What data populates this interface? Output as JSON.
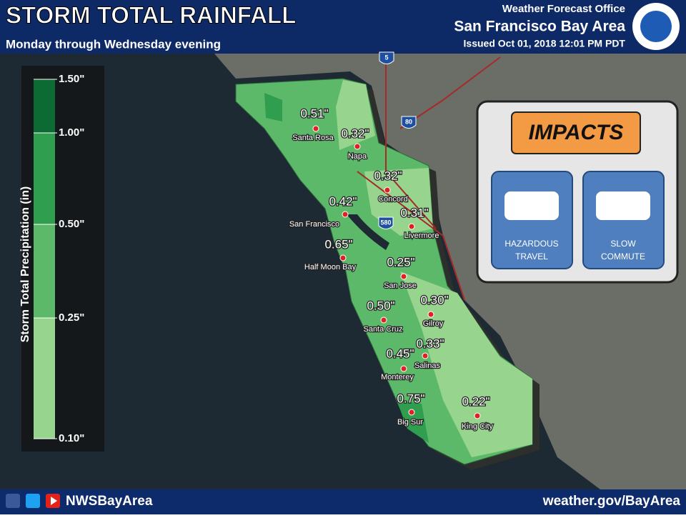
{
  "header": {
    "title": "STORM TOTAL RAINFALL",
    "subtitle": "Monday through Wednesday evening",
    "office": "Weather Forecast Office",
    "area": "San Francisco Bay Area",
    "issued": "Issued Oct 01, 2018 12:01 PM PDT"
  },
  "legend": {
    "title": "Storm Total Precipitation (in)",
    "ticks": [
      "1.50\"",
      "1.00\"",
      "0.50\"",
      "0.25\"",
      "0.10\""
    ],
    "colors": [
      "#0c6b33",
      "#2f9e4e",
      "#5db96a",
      "#97d48d"
    ]
  },
  "map": {
    "shields": [
      "5",
      "80",
      "580"
    ]
  },
  "cities": [
    {
      "name": "Santa Rosa",
      "amount": "0.51\""
    },
    {
      "name": "Napa",
      "amount": "0.32\""
    },
    {
      "name": "Concord",
      "amount": "0.32\""
    },
    {
      "name": "San Francisco",
      "amount": "0.42\""
    },
    {
      "name": "Livermore",
      "amount": "0.31\""
    },
    {
      "name": "Half Moon Bay",
      "amount": "0.65\""
    },
    {
      "name": "San Jose",
      "amount": "0.25\""
    },
    {
      "name": "Gilroy",
      "amount": "0.30\""
    },
    {
      "name": "Santa Cruz",
      "amount": "0.50\""
    },
    {
      "name": "Salinas",
      "amount": "0.33\""
    },
    {
      "name": "Monterey",
      "amount": "0.45\""
    },
    {
      "name": "Big Sur",
      "amount": "0.75\""
    },
    {
      "name": "King City",
      "amount": "0.22\""
    }
  ],
  "impacts": {
    "title": "IMPACTS",
    "items": [
      {
        "lines": [
          "HAZARDOUS",
          "TRAVEL"
        ]
      },
      {
        "lines": [
          "SLOW",
          "COMMUTE"
        ]
      }
    ]
  },
  "footer": {
    "handle": "NWSBayArea",
    "url": "weather.gov/BayArea"
  }
}
